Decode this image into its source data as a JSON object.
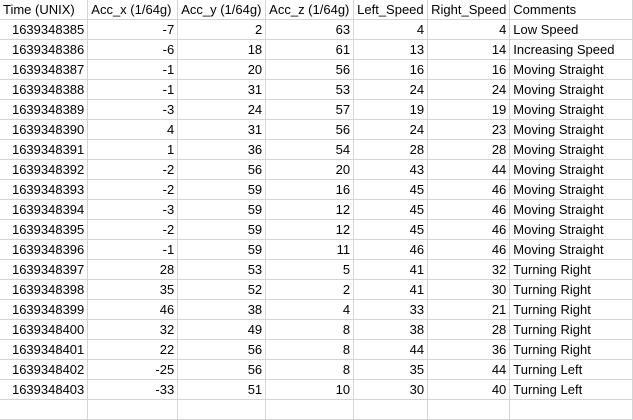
{
  "headers": [
    "Time (UNIX)",
    "Acc_x (1/64g)",
    "Acc_y (1/64g)",
    "Acc_z (1/64g)",
    "Left_Speed",
    "Right_Speed",
    "Comments"
  ],
  "rows": [
    [
      "1639348385",
      "-7",
      "2",
      "63",
      "4",
      "4",
      "Low Speed"
    ],
    [
      "1639348386",
      "-6",
      "18",
      "61",
      "13",
      "14",
      "Increasing Speed"
    ],
    [
      "1639348387",
      "-1",
      "20",
      "56",
      "16",
      "16",
      "Moving Straight"
    ],
    [
      "1639348388",
      "-1",
      "31",
      "53",
      "24",
      "24",
      "Moving Straight"
    ],
    [
      "1639348389",
      "-3",
      "24",
      "57",
      "19",
      "19",
      "Moving Straight"
    ],
    [
      "1639348390",
      "4",
      "31",
      "56",
      "24",
      "23",
      "Moving Straight"
    ],
    [
      "1639348391",
      "1",
      "36",
      "54",
      "28",
      "28",
      "Moving Straight"
    ],
    [
      "1639348392",
      "-2",
      "56",
      "20",
      "43",
      "44",
      "Moving Straight"
    ],
    [
      "1639348393",
      "-2",
      "59",
      "16",
      "45",
      "46",
      "Moving Straight"
    ],
    [
      "1639348394",
      "-3",
      "59",
      "12",
      "45",
      "46",
      "Moving Straight"
    ],
    [
      "1639348395",
      "-2",
      "59",
      "12",
      "45",
      "46",
      "Moving Straight"
    ],
    [
      "1639348396",
      "-1",
      "59",
      "11",
      "46",
      "46",
      "Moving Straight"
    ],
    [
      "1639348397",
      "28",
      "53",
      "5",
      "41",
      "32",
      "Turning Right"
    ],
    [
      "1639348398",
      "35",
      "52",
      "2",
      "41",
      "30",
      "Turning Right"
    ],
    [
      "1639348399",
      "46",
      "38",
      "4",
      "33",
      "21",
      "Turning Right"
    ],
    [
      "1639348400",
      "32",
      "49",
      "8",
      "38",
      "28",
      "Turning Right"
    ],
    [
      "1639348401",
      "22",
      "56",
      "8",
      "44",
      "36",
      "Turning Right"
    ],
    [
      "1639348402",
      "-25",
      "56",
      "8",
      "35",
      "44",
      "Turning Left"
    ],
    [
      "1639348403",
      "-33",
      "51",
      "10",
      "30",
      "40",
      "Turning Left"
    ]
  ]
}
